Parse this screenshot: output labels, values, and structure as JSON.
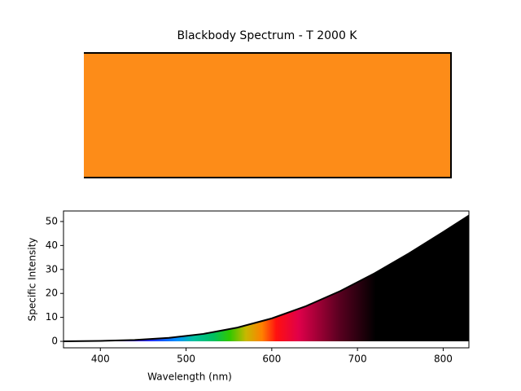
{
  "chart_data": [
    {
      "type": "swatch",
      "title": "Blackbody Spectrum - T 2000 K",
      "color": "#fd8c18"
    },
    {
      "type": "line",
      "xlabel": "Wavelength (nm)",
      "ylabel": "Specific Intensity",
      "x": [
        357,
        400,
        440,
        480,
        520,
        560,
        600,
        640,
        680,
        720,
        760,
        800,
        830
      ],
      "values": [
        0.03,
        0.18,
        0.58,
        1.46,
        3.1,
        5.75,
        9.58,
        14.7,
        21.0,
        28.4,
        36.7,
        45.6,
        52.5
      ],
      "color": "#000000",
      "xlim": [
        357,
        830
      ],
      "xticks": [
        400,
        500,
        600,
        700,
        800
      ],
      "ylim": [
        -2.7,
        54.4
      ],
      "yticks": [
        0,
        10,
        20,
        30,
        40,
        50
      ]
    }
  ]
}
